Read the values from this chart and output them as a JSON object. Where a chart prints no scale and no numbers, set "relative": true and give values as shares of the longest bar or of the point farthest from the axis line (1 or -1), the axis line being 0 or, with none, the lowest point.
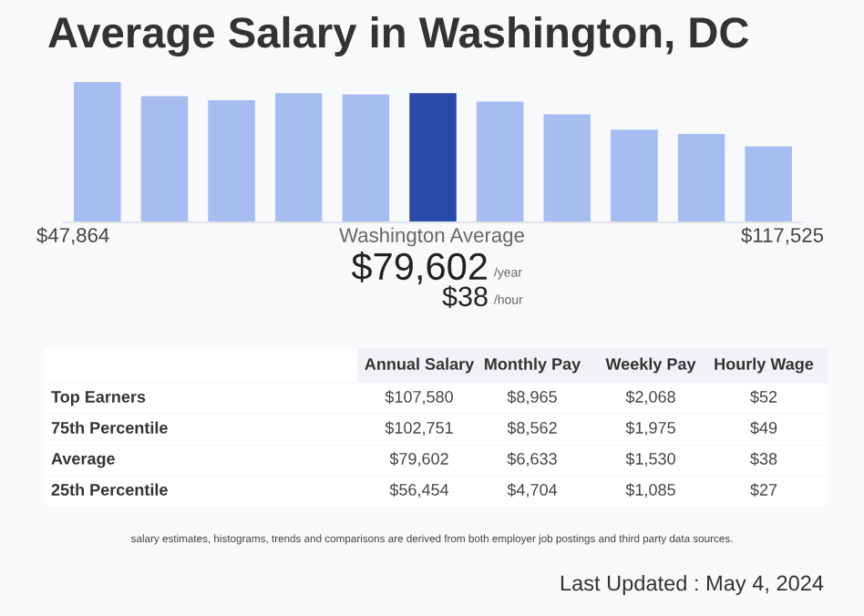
{
  "chart_data": [
    {
      "type": "bar",
      "title": "Average Salary in Washington, DC",
      "relative": true,
      "categories": [
        null,
        null,
        null,
        null,
        null,
        null,
        null,
        null,
        null,
        null,
        null
      ],
      "values": [
        1,
        0.9,
        0.87,
        0.92,
        0.91,
        0.92,
        0.86,
        0.77,
        0.66,
        0.63,
        0.54
      ],
      "colors": [
        "#a7bcf0",
        "#a7bcf0",
        "#a7bcf0",
        "#a7bcf0",
        "#a7bcf0",
        "#2a4aa8",
        "#a7bcf0",
        "#a7bcf0",
        "#a7bcf0",
        "#a7bcf0",
        "#a7bcf0"
      ],
      "grid": false,
      "legend": false,
      "annotations": [
        "$47,864",
        "Washington Average",
        "$117,525",
        "$79,602",
        "/year",
        "$38",
        "/hour"
      ]
    },
    {
      "type": "other",
      "categories": [
        "Annual Salary",
        "Monthly Pay",
        "Weekly Pay",
        "Hourly Wage"
      ],
      "y_categories": [
        "Top Earners",
        "75th Percentile",
        "Average",
        "25th Percentile"
      ],
      "cell_labels": [
        [
          "$107,580",
          "$8,965",
          "$2,068",
          "$52"
        ],
        [
          "$102,751",
          "$8,562",
          "$1,975",
          "$49"
        ],
        [
          "$79,602",
          "$6,633",
          "$1,530",
          "$38"
        ],
        [
          "$56,454",
          "$4,704",
          "$1,085",
          "$27"
        ]
      ],
      "annotations": [
        "salary estimates, histograms, trends and comparisons are derived from both employer job postings and third party data sources.",
        "Last Updated : May 4, 2024"
      ]
    }
  ]
}
